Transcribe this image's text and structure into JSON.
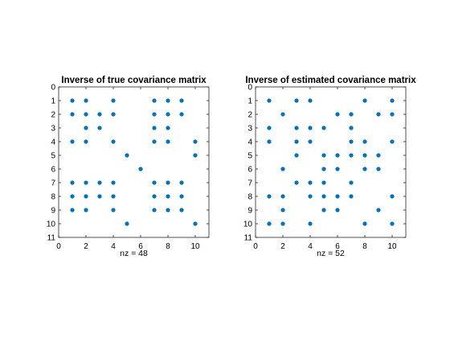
{
  "chart_data": [
    {
      "type": "scatter",
      "title": "Inverse of true covariance matrix",
      "xlabel": "nz = 48",
      "ylabel": "",
      "xlim": [
        0,
        11
      ],
      "ylim": [
        0,
        11
      ],
      "y_reversed": true,
      "xticks": [
        0,
        2,
        4,
        6,
        8,
        10
      ],
      "yticks": [
        0,
        1,
        2,
        3,
        4,
        5,
        6,
        7,
        8,
        9,
        10,
        11
      ],
      "marker_color": "#0072BD",
      "grid": false,
      "points": [
        [
          1,
          1
        ],
        [
          2,
          1
        ],
        [
          4,
          1
        ],
        [
          7,
          1
        ],
        [
          8,
          1
        ],
        [
          9,
          1
        ],
        [
          1,
          2
        ],
        [
          2,
          2
        ],
        [
          3,
          2
        ],
        [
          4,
          2
        ],
        [
          7,
          2
        ],
        [
          8,
          2
        ],
        [
          9,
          2
        ],
        [
          2,
          3
        ],
        [
          3,
          3
        ],
        [
          7,
          3
        ],
        [
          8,
          3
        ],
        [
          1,
          4
        ],
        [
          2,
          4
        ],
        [
          4,
          4
        ],
        [
          7,
          4
        ],
        [
          8,
          4
        ],
        [
          10,
          4
        ],
        [
          5,
          5
        ],
        [
          10,
          5
        ],
        [
          6,
          6
        ],
        [
          1,
          7
        ],
        [
          2,
          7
        ],
        [
          3,
          7
        ],
        [
          4,
          7
        ],
        [
          7,
          7
        ],
        [
          8,
          7
        ],
        [
          9,
          7
        ],
        [
          1,
          8
        ],
        [
          2,
          8
        ],
        [
          3,
          8
        ],
        [
          4,
          8
        ],
        [
          7,
          8
        ],
        [
          8,
          8
        ],
        [
          9,
          8
        ],
        [
          1,
          9
        ],
        [
          2,
          9
        ],
        [
          4,
          9
        ],
        [
          7,
          9
        ],
        [
          8,
          9
        ],
        [
          9,
          9
        ],
        [
          5,
          10
        ],
        [
          10,
          10
        ]
      ]
    },
    {
      "type": "scatter",
      "title": "Inverse of estimated covariance matrix",
      "xlabel": "nz = 52",
      "ylabel": "",
      "xlim": [
        0,
        11
      ],
      "ylim": [
        0,
        11
      ],
      "y_reversed": true,
      "xticks": [
        0,
        2,
        4,
        6,
        8,
        10
      ],
      "yticks": [
        0,
        1,
        2,
        3,
        4,
        5,
        6,
        7,
        8,
        9,
        10,
        11
      ],
      "marker_color": "#0072BD",
      "grid": false,
      "points": [
        [
          1,
          1
        ],
        [
          3,
          1
        ],
        [
          4,
          1
        ],
        [
          8,
          1
        ],
        [
          10,
          1
        ],
        [
          2,
          2
        ],
        [
          6,
          2
        ],
        [
          7,
          2
        ],
        [
          9,
          2
        ],
        [
          10,
          2
        ],
        [
          1,
          3
        ],
        [
          3,
          3
        ],
        [
          4,
          3
        ],
        [
          5,
          3
        ],
        [
          7,
          3
        ],
        [
          1,
          4
        ],
        [
          3,
          4
        ],
        [
          4,
          4
        ],
        [
          7,
          4
        ],
        [
          8,
          4
        ],
        [
          10,
          4
        ],
        [
          3,
          5
        ],
        [
          5,
          5
        ],
        [
          6,
          5
        ],
        [
          7,
          5
        ],
        [
          8,
          5
        ],
        [
          9,
          5
        ],
        [
          2,
          6
        ],
        [
          5,
          6
        ],
        [
          6,
          6
        ],
        [
          8,
          6
        ],
        [
          9,
          6
        ],
        [
          3,
          7
        ],
        [
          4,
          7
        ],
        [
          5,
          7
        ],
        [
          7,
          7
        ],
        [
          1,
          8
        ],
        [
          2,
          8
        ],
        [
          4,
          8
        ],
        [
          5,
          8
        ],
        [
          6,
          8
        ],
        [
          7,
          8
        ],
        [
          10,
          8
        ],
        [
          2,
          9
        ],
        [
          5,
          9
        ],
        [
          6,
          9
        ],
        [
          9,
          9
        ],
        [
          1,
          10
        ],
        [
          2,
          10
        ],
        [
          4,
          10
        ],
        [
          8,
          10
        ],
        [
          10,
          10
        ]
      ]
    }
  ]
}
